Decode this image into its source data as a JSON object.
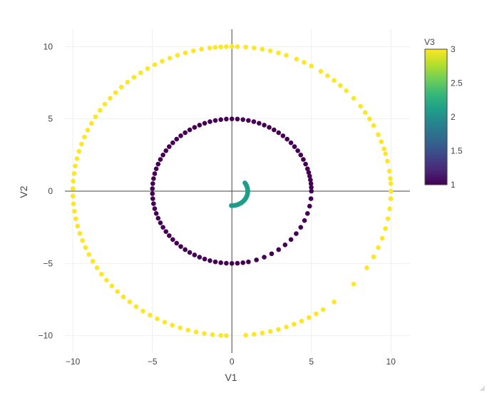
{
  "colors": {
    "grid": "#eeeeee",
    "zeroline": "#444444",
    "text": "#444444",
    "viridis": [
      "#440154",
      "#482878",
      "#3e4989",
      "#31688e",
      "#26828e",
      "#1f9e89",
      "#35b779",
      "#6ece58",
      "#b5de2b",
      "#fde725"
    ]
  },
  "chart_data": {
    "type": "scatter",
    "xlabel": "V1",
    "ylabel": "V2",
    "xlim": [
      -10.5,
      11.2
    ],
    "ylim": [
      -11.2,
      11.2
    ],
    "xticks": [
      -10,
      -5,
      0,
      5,
      10
    ],
    "yticks": [
      -10,
      -5,
      0,
      5,
      10
    ],
    "xtick_labels": [
      "−10",
      "−5",
      "0",
      "5",
      "10"
    ],
    "ytick_labels": [
      "−10",
      "−5",
      "0",
      "5",
      "10"
    ],
    "grid": true,
    "zerolines": true,
    "colorscale": "viridis",
    "colorbar": {
      "title": "V3",
      "range": [
        1,
        3
      ],
      "ticks": [
        1,
        1.5,
        2,
        2.5,
        3
      ],
      "tick_labels": [
        "1",
        "1.5",
        "2",
        "2.5",
        "3"
      ],
      "placement": "right"
    },
    "series": [
      {
        "v3": 3,
        "shape": "circle",
        "radius": 10,
        "angles_deg": [
          0,
          3,
          5,
          8,
          12,
          15,
          17,
          20,
          23,
          27,
          30,
          33,
          36,
          40,
          44,
          47,
          50,
          53,
          56,
          60,
          63,
          66,
          70,
          73,
          76,
          79,
          82,
          85,
          88,
          90,
          92,
          94,
          96,
          98,
          101,
          104,
          107,
          110,
          113,
          116,
          119,
          122,
          125,
          128,
          131,
          134,
          137,
          140,
          143,
          146,
          149,
          152,
          155,
          158,
          161,
          164,
          167,
          170,
          173,
          176,
          179,
          182,
          185,
          188,
          191,
          194,
          197,
          200,
          203,
          206,
          209,
          212,
          215,
          218,
          221,
          224,
          227,
          230,
          233,
          236,
          239,
          242,
          245,
          248,
          251,
          254,
          257,
          260,
          263,
          266,
          268,
          275,
          278,
          281,
          284,
          287,
          290,
          293,
          296,
          299,
          302,
          305,
          310,
          320,
          328,
          333,
          337,
          341,
          345,
          349,
          353,
          357
        ]
      },
      {
        "v3": 1,
        "shape": "circle",
        "radius": 5,
        "angles_deg": [
          0,
          3,
          6,
          9,
          12,
          15,
          18,
          22,
          26,
          30,
          34,
          38,
          42,
          46,
          50,
          54,
          58,
          62,
          66,
          70,
          74,
          78,
          82,
          86,
          90,
          94,
          98,
          102,
          106,
          110,
          114,
          118,
          122,
          126,
          130,
          134,
          138,
          142,
          146,
          150,
          154,
          158,
          162,
          166,
          170,
          174,
          178,
          182,
          186,
          190,
          194,
          198,
          202,
          206,
          210,
          214,
          218,
          222,
          226,
          230,
          234,
          238,
          242,
          246,
          250,
          254,
          258,
          262,
          266,
          270,
          274,
          278,
          282,
          288,
          294,
          300,
          306,
          312,
          318,
          324,
          330,
          336,
          342,
          348,
          354
        ]
      },
      {
        "v3": 2.1,
        "shape": "arc",
        "radius": 1,
        "start_deg": 268,
        "end_deg": 395,
        "count": 45
      }
    ]
  }
}
